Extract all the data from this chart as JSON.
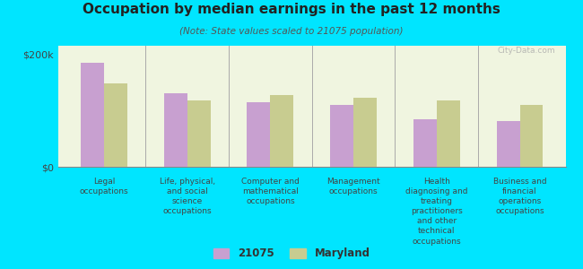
{
  "title": "Occupation by median earnings in the past 12 months",
  "subtitle": "(Note: State values scaled to 21075 population)",
  "categories": [
    "Legal\noccupations",
    "Life, physical,\nand social\nscience\noccupations",
    "Computer and\nmathematical\noccupations",
    "Management\noccupations",
    "Health\ndiagnosing and\ntreating\npractitioners\nand other\ntechnical\noccupations",
    "Business and\nfinancial\noperations\noccupations"
  ],
  "values_21075": [
    185000,
    130000,
    115000,
    110000,
    85000,
    82000
  ],
  "values_maryland": [
    148000,
    118000,
    128000,
    123000,
    118000,
    110000
  ],
  "color_21075": "#c8a0d0",
  "color_maryland": "#c8cc90",
  "background_color": "#00e5ff",
  "plot_bg_color": "#f0f5e0",
  "ylim": [
    0,
    215000
  ],
  "yticks": [
    0,
    200000
  ],
  "ytick_labels": [
    "$0",
    "$200k"
  ],
  "legend_label_21075": "21075",
  "legend_label_maryland": "Maryland",
  "watermark": "City-Data.com"
}
